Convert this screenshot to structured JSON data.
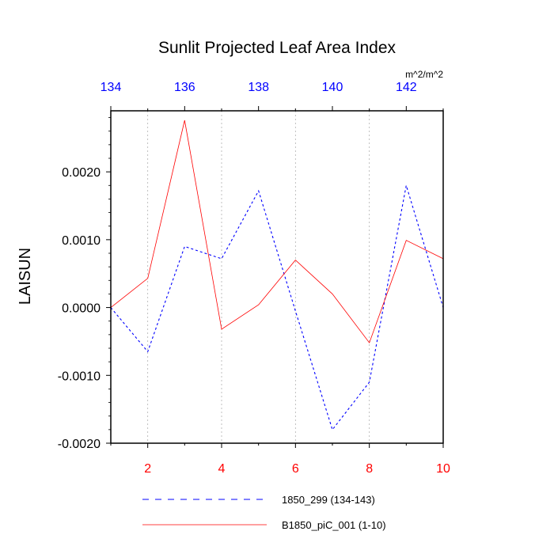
{
  "chart_data": {
    "type": "line",
    "title": "Sunlit Projected Leaf Area Index",
    "units": "m^2/m^2",
    "ylabel": "LAISUN",
    "ylim": [
      -0.002,
      0.0029
    ],
    "y_ticks": [
      {
        "value": 0.002,
        "label": "0.0020"
      },
      {
        "value": 0.001,
        "label": "0.0010"
      },
      {
        "value": 0.0,
        "label": "0.0000"
      },
      {
        "value": -0.001,
        "label": "-0.0010"
      },
      {
        "value": -0.002,
        "label": "-0.0020"
      }
    ],
    "x_bottom": {
      "range": [
        1,
        10
      ],
      "ticks": [
        {
          "value": 2,
          "label": "2"
        },
        {
          "value": 4,
          "label": "4"
        },
        {
          "value": 6,
          "label": "6"
        },
        {
          "value": 8,
          "label": "8"
        },
        {
          "value": 10,
          "label": "10"
        }
      ],
      "color": "#ff0000"
    },
    "x_top": {
      "range": [
        134,
        143
      ],
      "ticks": [
        {
          "value": 134,
          "label": "134"
        },
        {
          "value": 136,
          "label": "136"
        },
        {
          "value": 138,
          "label": "138"
        },
        {
          "value": 140,
          "label": "140"
        },
        {
          "value": 142,
          "label": "142"
        }
      ],
      "color": "#0000ff"
    },
    "grid": "vertical dashed at even bottom-axis ticks",
    "legend_placement": "bottom",
    "series": [
      {
        "name": "1850_299 (134-143)",
        "axis": "top",
        "color": "#0000ff",
        "dash": "dashed",
        "x": [
          134,
          135,
          136,
          137,
          138,
          139,
          140,
          141,
          142,
          143
        ],
        "y": [
          0.0,
          -0.00065,
          0.0009,
          0.00072,
          0.00172,
          -5e-05,
          -0.0018,
          -0.0011,
          0.0018,
          0.0
        ]
      },
      {
        "name": "B1850_piC_001 (1-10)",
        "axis": "bottom",
        "color": "#ff0000",
        "dash": "solid",
        "x": [
          1,
          2,
          3,
          4,
          5,
          6,
          7,
          8,
          9,
          10
        ],
        "y": [
          0.0,
          0.00043,
          0.00276,
          -0.00032,
          4e-05,
          0.0007,
          0.0002,
          -0.00052,
          0.00099,
          0.00072
        ]
      }
    ]
  }
}
